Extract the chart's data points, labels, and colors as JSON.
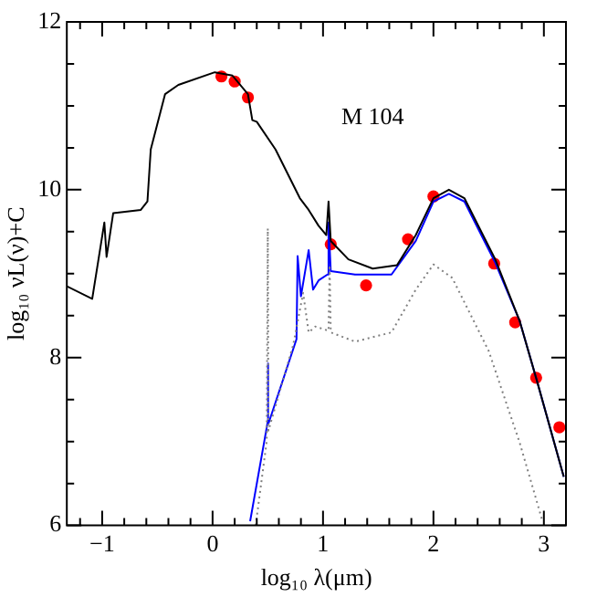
{
  "chart_data": {
    "type": "line",
    "xlabel": "log₁₀ λ(μm)",
    "ylabel": "log₁₀ νL(ν)+C",
    "annotations": [
      "M 104"
    ],
    "xlim": [
      -1.32,
      3.2
    ],
    "ylim": [
      6,
      12
    ],
    "xticks": [
      {
        "value": -1.2,
        "label": null
      },
      -1,
      {
        "value": -0.8,
        "label": null
      },
      {
        "value": -0.6,
        "label": null
      },
      {
        "value": -0.4,
        "label": null
      },
      {
        "value": -0.2,
        "label": null
      },
      0,
      {
        "value": 0.2,
        "label": null
      },
      {
        "value": 0.4,
        "label": null
      },
      {
        "value": 0.6,
        "label": null
      },
      {
        "value": 0.8,
        "label": null
      },
      1,
      {
        "value": 1.2,
        "label": null
      },
      {
        "value": 1.4,
        "label": null
      },
      {
        "value": 1.6,
        "label": null
      },
      {
        "value": 1.8,
        "label": null
      },
      2,
      {
        "value": 2.2,
        "label": null
      },
      {
        "value": 2.4,
        "label": null
      },
      {
        "value": 2.6,
        "label": null
      },
      {
        "value": 2.8,
        "label": null
      },
      3
    ],
    "yticks": [
      6,
      {
        "value": 6.5,
        "label": null
      },
      {
        "value": 7,
        "label": null
      },
      {
        "value": 7.5,
        "label": null
      },
      8,
      {
        "value": 8.5,
        "label": null
      },
      {
        "value": 9,
        "label": null
      },
      {
        "value": 9.5,
        "label": null
      },
      10,
      {
        "value": 10.5,
        "label": null
      },
      {
        "value": 11,
        "label": null
      },
      {
        "value": 11.5,
        "label": null
      },
      12
    ],
    "grid": false,
    "legend": false,
    "series": [
      {
        "color": "#808080",
        "line_style": "dotted",
        "x": [
          0.39,
          0.49,
          0.5,
          0.505,
          0.51,
          0.73,
          0.82,
          0.87,
          0.93,
          1.05,
          1.06,
          1.07,
          1.29,
          1.62,
          1.84,
          2.0,
          2.17,
          2.5,
          2.78,
          2.99
        ],
        "values": [
          6.0,
          7.0,
          9.54,
          7.13,
          7.15,
          8.15,
          8.77,
          8.3,
          8.37,
          8.32,
          9.1,
          8.3,
          8.19,
          8.3,
          8.81,
          9.11,
          8.95,
          8.08,
          6.99,
          6.04
        ]
      },
      {
        "color": "#000000",
        "x": [
          -1.32,
          -1.09,
          -0.98,
          -0.96,
          -0.9,
          -0.65,
          -0.59,
          -0.56,
          -0.43,
          -0.31,
          0.02,
          0.18,
          0.32,
          0.36,
          0.4,
          0.57,
          0.79,
          0.87,
          0.96,
          1.03,
          1.05,
          1.07,
          1.23,
          1.45,
          1.67,
          1.84,
          2.0,
          2.14,
          2.28,
          2.56,
          2.78,
          2.94,
          3.18
        ],
        "values": [
          8.85,
          8.7,
          9.61,
          9.2,
          9.72,
          9.76,
          9.86,
          10.48,
          11.14,
          11.25,
          11.4,
          11.36,
          11.14,
          10.83,
          10.81,
          10.48,
          9.9,
          9.76,
          9.57,
          9.46,
          9.86,
          9.39,
          9.17,
          9.06,
          9.1,
          9.46,
          9.9,
          10.0,
          9.9,
          9.17,
          8.44,
          7.71,
          6.58
        ]
      },
      {
        "color": "#0000ff",
        "x": [
          0.34,
          0.5,
          0.5,
          0.505,
          0.76,
          0.77,
          0.8,
          0.87,
          0.91,
          0.96,
          1.04,
          1.05,
          1.07,
          1.29,
          1.62,
          1.84,
          2.0,
          2.14,
          2.28,
          2.56,
          2.78,
          2.94,
          3.18
        ],
        "values": [
          6.05,
          7.24,
          7.93,
          7.2,
          8.22,
          9.21,
          8.73,
          9.28,
          8.81,
          8.92,
          8.99,
          9.61,
          9.03,
          8.99,
          8.99,
          9.39,
          9.86,
          9.95,
          9.86,
          9.13,
          8.44,
          7.71,
          6.58
        ]
      },
      {
        "type": "scatter",
        "color": "#ff0000",
        "marker": "circle",
        "x": [
          0.08,
          0.2,
          0.32,
          1.07,
          1.39,
          1.77,
          2.0,
          2.55,
          2.74,
          2.93,
          3.14
        ],
        "values": [
          11.35,
          11.29,
          11.1,
          9.35,
          8.86,
          9.41,
          9.92,
          9.12,
          8.42,
          7.76,
          7.17
        ]
      }
    ]
  }
}
